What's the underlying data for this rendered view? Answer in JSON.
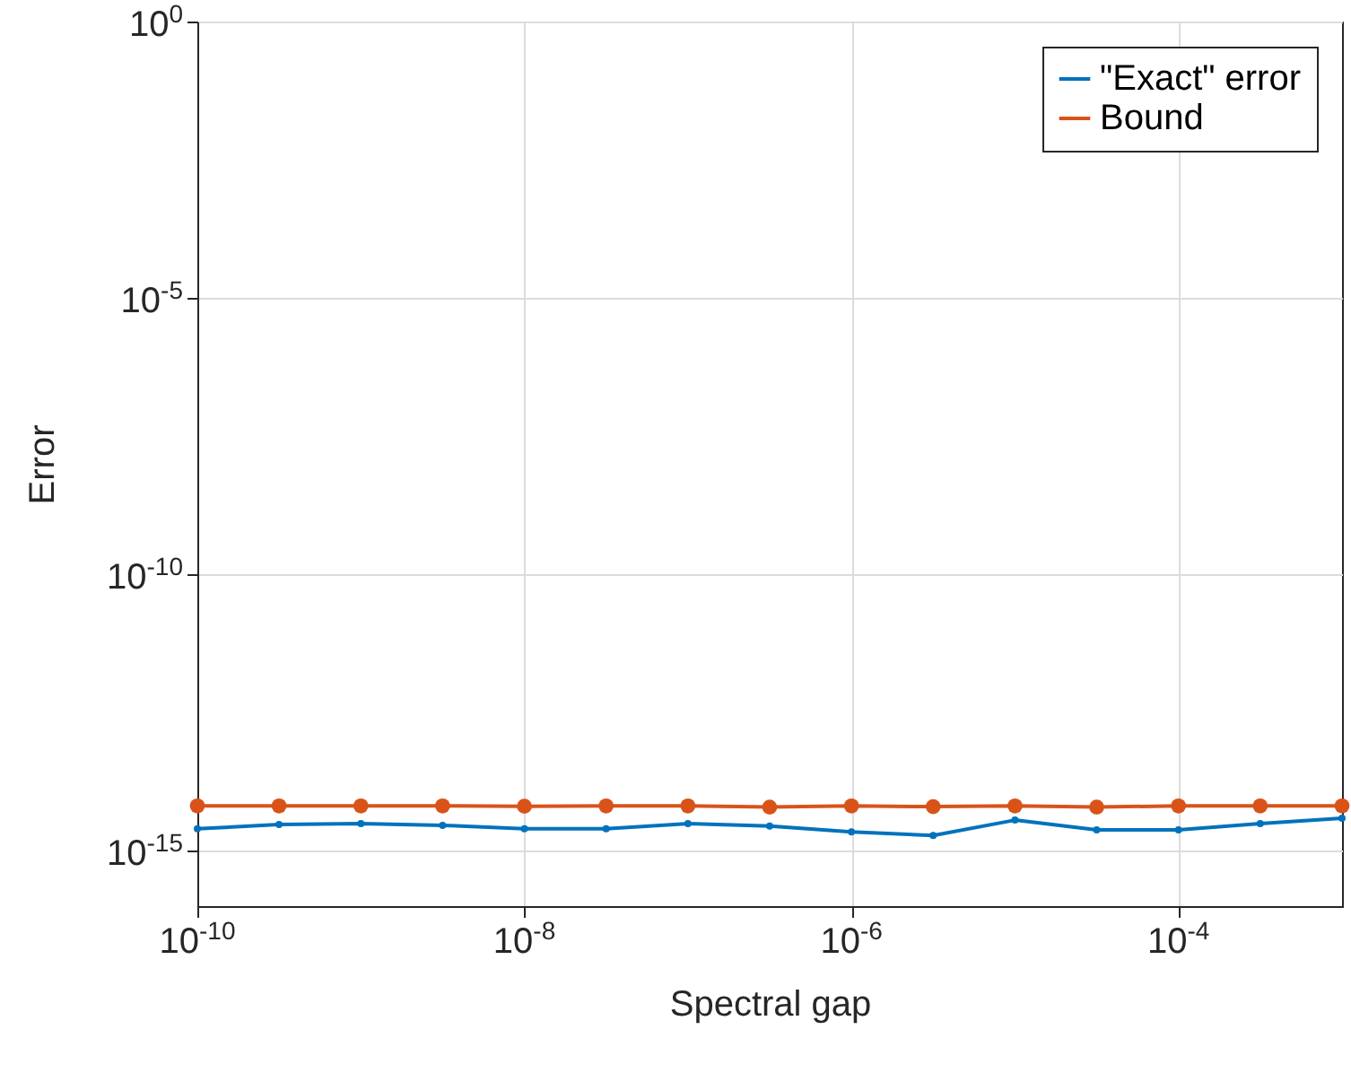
{
  "chart_data": {
    "type": "line",
    "xlabel": "Spectral gap",
    "ylabel": "Error",
    "log": "xy",
    "grid": true,
    "legend": "top right",
    "marker": "circle",
    "line_style": "solid",
    "x": [
      1e-10,
      3.16e-10,
      1e-09,
      3.16e-09,
      1e-08,
      3.16e-08,
      1e-07,
      3.16e-07,
      1e-06,
      3.16e-06,
      1e-05,
      3.16e-05,
      0.0001,
      0.000316,
      0.001
    ],
    "xlim": [
      1e-10,
      0.001
    ],
    "xticks": [
      {
        "value": 1e-10,
        "label": "10$^{-10}$"
      },
      {
        "value": 1e-08,
        "label": "10$^{-8}$"
      },
      {
        "value": 1e-06,
        "label": "10$^{-6}$"
      },
      {
        "value": 0.0001,
        "label": "10$^{-4}$"
      }
    ],
    "ylim": [
      1e-16,
      1
    ],
    "yticks": [
      {
        "value": 1e-15,
        "label": "10$^{-15}$"
      },
      {
        "value": 1e-10,
        "label": "10$^{-10}$"
      },
      {
        "value": 1e-05,
        "label": "10$^{-5}$"
      },
      {
        "value": 1,
        "label": "10$^{0}$"
      }
    ],
    "series": [
      {
        "name": "\"Exact\" error",
        "color": "#0072bd",
        "values": [
          2.5e-15,
          3e-15,
          3.1e-15,
          2.9e-15,
          2.5e-15,
          2.5e-15,
          3.1e-15,
          2.8e-15,
          2.2e-15,
          1.9e-15,
          3.6e-15,
          2.4e-15,
          2.4e-15,
          3.1e-15,
          3.9e-15
        ]
      },
      {
        "name": "Bound",
        "color": "#d95319",
        "values": [
          6.5e-15,
          6.5e-15,
          6.5e-15,
          6.5e-15,
          6.4e-15,
          6.5e-15,
          6.5e-15,
          6.2e-15,
          6.5e-15,
          6.3e-15,
          6.5e-15,
          6.2e-15,
          6.5e-15,
          6.5e-15,
          6.5e-15
        ]
      }
    ]
  }
}
